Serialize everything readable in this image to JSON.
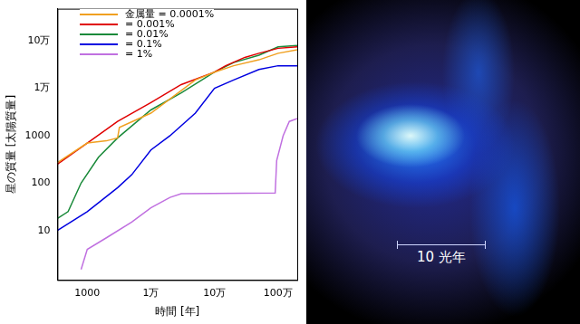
{
  "chart_data": {
    "type": "line",
    "x_label": "時間 [年]",
    "y_label": "星の質量 [太陽質量]",
    "log": true,
    "grid": false,
    "legend": "top-left",
    "xlim": [
      340,
      2000000
    ],
    "ylim": [
      0.9,
      480000
    ],
    "xticks": [
      1000,
      {
        "value": 10000,
        "label": "1万"
      },
      {
        "value": 100000,
        "label": "10万"
      },
      {
        "value": 1000000,
        "label": "100万"
      }
    ],
    "yticks": [
      10,
      100,
      1000,
      {
        "value": 10000,
        "label": "1万"
      },
      {
        "value": 100000,
        "label": "10万"
      }
    ],
    "series": [
      {
        "name": "金属量 = 0.0001%",
        "color": "#f0a020",
        "x": [
          340,
          1000,
          2000,
          3000,
          3200,
          10000,
          50000,
          100000,
          200000,
          500000,
          1000000,
          2000000
        ],
        "values": [
          270,
          700,
          780,
          900,
          1500,
          3000,
          15000,
          22000,
          30000,
          40000,
          55000,
          65000
        ]
      },
      {
        "name": "= 0.001%",
        "color": "#e00000",
        "x": [
          340,
          1000,
          3000,
          10000,
          30000,
          100000,
          150000,
          300000,
          500000,
          1000000,
          2000000
        ],
        "values": [
          250,
          700,
          2000,
          5000,
          12000,
          22000,
          30000,
          45000,
          55000,
          70000,
          75000
        ]
      },
      {
        "name": "= 0.01%",
        "color": "#1a8a3a",
        "x": [
          340,
          500,
          800,
          1500,
          3000,
          10000,
          30000,
          100000,
          200000,
          500000,
          1000000,
          2000000
        ],
        "values": [
          18,
          25,
          100,
          350,
          900,
          3500,
          8000,
          22000,
          35000,
          50000,
          75000,
          80000
        ]
      },
      {
        "name": "= 0.1%",
        "color": "#0000e0",
        "x": [
          340,
          1000,
          3000,
          5000,
          10000,
          20000,
          50000,
          100000,
          200000,
          500000,
          1000000,
          2000000
        ],
        "values": [
          10,
          25,
          80,
          150,
          500,
          1000,
          3000,
          10000,
          15000,
          25000,
          30000,
          30000
        ]
      },
      {
        "name": "= 1%",
        "color": "#c070e0",
        "x": [
          800,
          1000,
          2000,
          5000,
          10000,
          20000,
          30000,
          900000,
          950000,
          1200000,
          1500000,
          2000000
        ],
        "values": [
          1.5,
          4,
          7,
          15,
          30,
          50,
          60,
          62,
          300,
          1000,
          2000,
          2300
        ]
      }
    ]
  },
  "image": {
    "scale_bar_label": "10 光年"
  }
}
